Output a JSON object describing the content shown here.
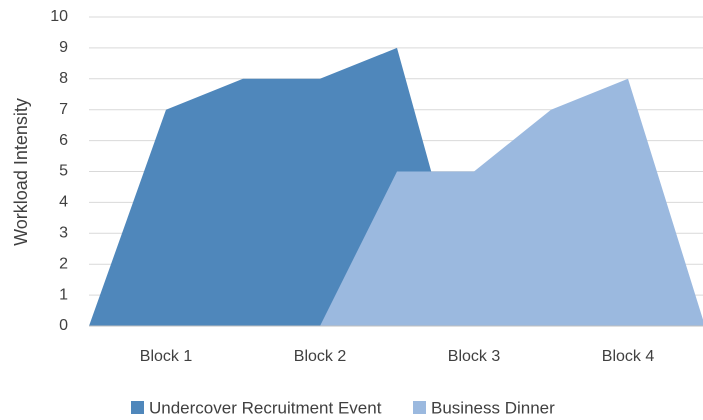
{
  "chart_data": {
    "type": "area",
    "ylabel": "Workload Intensity",
    "xlim": [
      0.5,
      4.5
    ],
    "xticks": [
      {
        "value": 1,
        "label": "Block 1"
      },
      {
        "value": 2,
        "label": "Block 2"
      },
      {
        "value": 3,
        "label": "Block 3"
      },
      {
        "value": 4,
        "label": "Block 4"
      }
    ],
    "ylim": [
      0,
      10
    ],
    "yticks": [
      0,
      1,
      2,
      3,
      4,
      5,
      6,
      7,
      8,
      9,
      10
    ],
    "grid": true,
    "legend": "bottom",
    "series": [
      {
        "name": "Undercover Recruitment Event",
        "color": "#4f87bb",
        "x": [
          0.5,
          1,
          1.5,
          2,
          2.5,
          3
        ],
        "values": [
          0,
          7,
          8,
          8,
          9,
          0
        ]
      },
      {
        "name": "Business Dinner",
        "color": "#9bb9df",
        "x": [
          2,
          2.5,
          3,
          3.5,
          4,
          4.5
        ],
        "values": [
          0,
          5,
          5,
          7,
          8,
          0
        ]
      }
    ]
  }
}
